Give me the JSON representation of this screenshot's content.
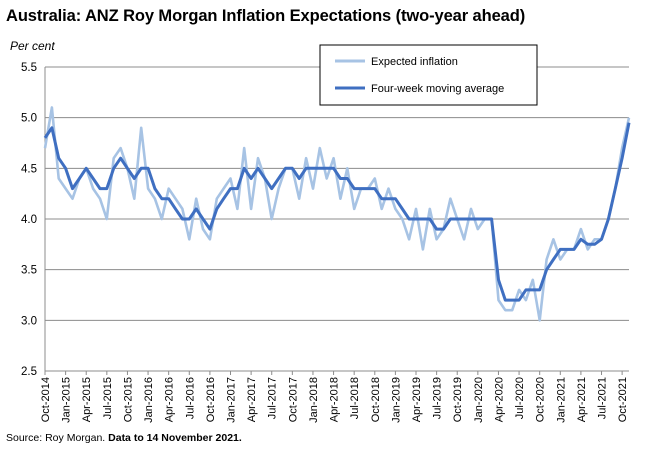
{
  "title": "Australia: ANZ Roy Morgan Inflation Expectations (two-year ahead)",
  "source": {
    "prefix": "Source: Roy Morgan.",
    "bold": "Data to 14 November 2021."
  },
  "colors": {
    "weekly": "#a7c3e4",
    "average": "#3f6fc1",
    "grid": "#8c8c8c",
    "axis": "#8c8c8c"
  },
  "chart_data": {
    "type": "line",
    "title": "Australia: ANZ Roy Morgan Inflation Expectations (two-year ahead)",
    "ylabel": "Per cent",
    "xlabel": "",
    "ylim": [
      2.5,
      5.5
    ],
    "yticks": [
      "2.5",
      "3.0",
      "3.5",
      "4.0",
      "4.5",
      "5.0",
      "5.5"
    ],
    "xlim": [
      "2014-10",
      "2021-11"
    ],
    "xticks": [
      "Oct-2014",
      "Jan-2015",
      "Apr-2015",
      "Jul-2015",
      "Oct-2015",
      "Jan-2016",
      "Apr-2016",
      "Jul-2016",
      "Oct-2016",
      "Jan-2017",
      "Apr-2017",
      "Jul-2017",
      "Oct-2017",
      "Jan-2018",
      "Apr-2018",
      "Jul-2018",
      "Oct-2018",
      "Jan-2019",
      "Apr-2019",
      "Jul-2019",
      "Oct-2019",
      "Jan-2020",
      "Apr-2020",
      "Jul-2020",
      "Oct-2020",
      "Jan-2021",
      "Apr-2021",
      "Jul-2021",
      "Oct-2021"
    ],
    "grid": true,
    "legend_position": "top-right",
    "series": [
      {
        "name": "Expected inflation",
        "x": [
          "2014-10",
          "2014-11",
          "2014-12",
          "2015-01",
          "2015-02",
          "2015-03",
          "2015-04",
          "2015-05",
          "2015-06",
          "2015-07",
          "2015-08",
          "2015-09",
          "2015-10",
          "2015-11",
          "2015-12",
          "2016-01",
          "2016-02",
          "2016-03",
          "2016-04",
          "2016-05",
          "2016-06",
          "2016-07",
          "2016-08",
          "2016-09",
          "2016-10",
          "2016-11",
          "2016-12",
          "2017-01",
          "2017-02",
          "2017-03",
          "2017-04",
          "2017-05",
          "2017-06",
          "2017-07",
          "2017-08",
          "2017-09",
          "2017-10",
          "2017-11",
          "2017-12",
          "2018-01",
          "2018-02",
          "2018-03",
          "2018-04",
          "2018-05",
          "2018-06",
          "2018-07",
          "2018-08",
          "2018-09",
          "2018-10",
          "2018-11",
          "2018-12",
          "2019-01",
          "2019-02",
          "2019-03",
          "2019-04",
          "2019-05",
          "2019-06",
          "2019-07",
          "2019-08",
          "2019-09",
          "2019-10",
          "2019-11",
          "2019-12",
          "2020-01",
          "2020-02",
          "2020-03",
          "2020-04",
          "2020-05",
          "2020-06",
          "2020-07",
          "2020-08",
          "2020-09",
          "2020-10",
          "2020-11",
          "2020-12",
          "2021-01",
          "2021-02",
          "2021-03",
          "2021-04",
          "2021-05",
          "2021-06",
          "2021-07",
          "2021-08",
          "2021-09",
          "2021-10",
          "2021-11"
        ],
        "values": [
          4.7,
          5.1,
          4.4,
          4.3,
          4.2,
          4.4,
          4.5,
          4.3,
          4.2,
          4.0,
          4.6,
          4.7,
          4.5,
          4.2,
          4.9,
          4.3,
          4.2,
          4.0,
          4.3,
          4.2,
          4.1,
          3.8,
          4.2,
          3.9,
          3.8,
          4.2,
          4.3,
          4.4,
          4.1,
          4.7,
          4.1,
          4.6,
          4.4,
          4.0,
          4.3,
          4.5,
          4.5,
          4.2,
          4.6,
          4.3,
          4.7,
          4.4,
          4.6,
          4.2,
          4.5,
          4.1,
          4.3,
          4.3,
          4.4,
          4.1,
          4.3,
          4.1,
          4.0,
          3.8,
          4.1,
          3.7,
          4.1,
          3.8,
          3.9,
          4.2,
          4.0,
          3.8,
          4.1,
          3.9,
          4.0,
          4.0,
          3.2,
          3.1,
          3.1,
          3.3,
          3.2,
          3.4,
          3.0,
          3.6,
          3.8,
          3.6,
          3.7,
          3.7,
          3.9,
          3.7,
          3.8,
          3.8,
          4.0,
          4.3,
          4.7,
          5.0
        ]
      },
      {
        "name": "Four-week moving average",
        "x": [
          "2014-10",
          "2014-11",
          "2014-12",
          "2015-01",
          "2015-02",
          "2015-03",
          "2015-04",
          "2015-05",
          "2015-06",
          "2015-07",
          "2015-08",
          "2015-09",
          "2015-10",
          "2015-11",
          "2015-12",
          "2016-01",
          "2016-02",
          "2016-03",
          "2016-04",
          "2016-05",
          "2016-06",
          "2016-07",
          "2016-08",
          "2016-09",
          "2016-10",
          "2016-11",
          "2016-12",
          "2017-01",
          "2017-02",
          "2017-03",
          "2017-04",
          "2017-05",
          "2017-06",
          "2017-07",
          "2017-08",
          "2017-09",
          "2017-10",
          "2017-11",
          "2017-12",
          "2018-01",
          "2018-02",
          "2018-03",
          "2018-04",
          "2018-05",
          "2018-06",
          "2018-07",
          "2018-08",
          "2018-09",
          "2018-10",
          "2018-11",
          "2018-12",
          "2019-01",
          "2019-02",
          "2019-03",
          "2019-04",
          "2019-05",
          "2019-06",
          "2019-07",
          "2019-08",
          "2019-09",
          "2019-10",
          "2019-11",
          "2019-12",
          "2020-01",
          "2020-02",
          "2020-03",
          "2020-04",
          "2020-05",
          "2020-06",
          "2020-07",
          "2020-08",
          "2020-09",
          "2020-10",
          "2020-11",
          "2020-12",
          "2021-01",
          "2021-02",
          "2021-03",
          "2021-04",
          "2021-05",
          "2021-06",
          "2021-07",
          "2021-08",
          "2021-09",
          "2021-10",
          "2021-11"
        ],
        "values": [
          4.8,
          4.9,
          4.6,
          4.5,
          4.3,
          4.4,
          4.5,
          4.4,
          4.3,
          4.3,
          4.5,
          4.6,
          4.5,
          4.4,
          4.5,
          4.5,
          4.3,
          4.2,
          4.2,
          4.1,
          4.0,
          4.0,
          4.1,
          4.0,
          3.9,
          4.1,
          4.2,
          4.3,
          4.3,
          4.5,
          4.4,
          4.5,
          4.4,
          4.3,
          4.4,
          4.5,
          4.5,
          4.4,
          4.5,
          4.5,
          4.5,
          4.5,
          4.5,
          4.4,
          4.4,
          4.3,
          4.3,
          4.3,
          4.3,
          4.2,
          4.2,
          4.2,
          4.1,
          4.0,
          4.0,
          4.0,
          4.0,
          3.9,
          3.9,
          4.0,
          4.0,
          4.0,
          4.0,
          4.0,
          4.0,
          4.0,
          3.4,
          3.2,
          3.2,
          3.2,
          3.3,
          3.3,
          3.3,
          3.5,
          3.6,
          3.7,
          3.7,
          3.7,
          3.8,
          3.75,
          3.75,
          3.8,
          4.0,
          4.3,
          4.6,
          4.95
        ]
      }
    ]
  }
}
